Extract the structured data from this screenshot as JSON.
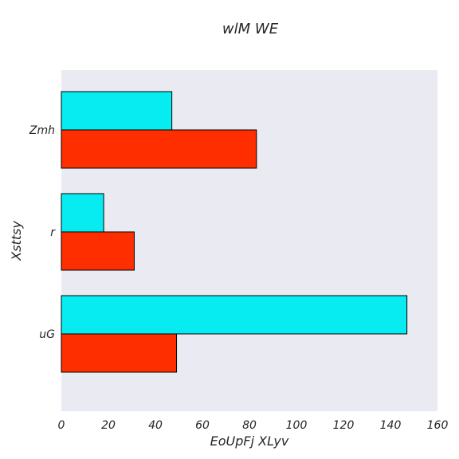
{
  "chart_data": {
    "type": "bar",
    "orientation": "horizontal",
    "title": "wlM WE",
    "xlabel": "EoUpFj XLyv",
    "ylabel": "Xsttsy",
    "categories": [
      "Zmh",
      "r",
      "uG"
    ],
    "series": [
      {
        "values": [
          47,
          18,
          147
        ],
        "color": "#06ecf1"
      },
      {
        "values": [
          83,
          31,
          49
        ],
        "color": "#ff2e00"
      }
    ],
    "xlim": [
      0,
      160
    ],
    "xticks": [
      0,
      20,
      40,
      60,
      80,
      100,
      120,
      140,
      160
    ],
    "grid": false,
    "legend": "none",
    "plot_background": "#eaeaf2"
  }
}
